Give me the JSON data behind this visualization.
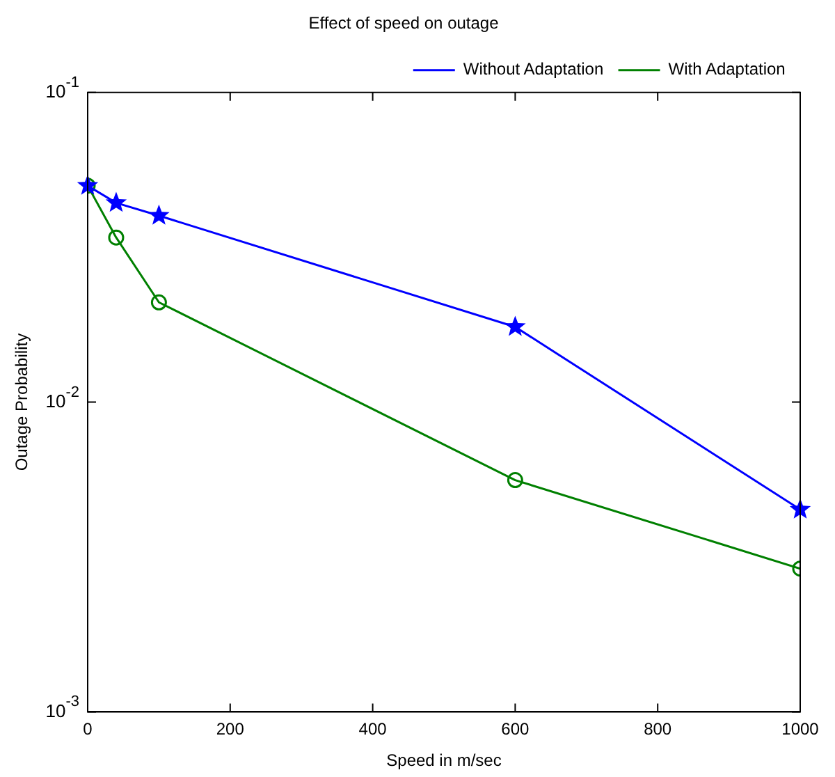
{
  "chart_data": {
    "type": "line",
    "title": "Effect of speed on outage",
    "xlabel": "Speed in m/sec",
    "ylabel": "Outage Probability",
    "x": [
      0,
      40,
      100,
      600,
      1000
    ],
    "series": [
      {
        "name": "Without Adaptation",
        "color": "#0000ff",
        "marker": "star",
        "values": [
          0.05,
          0.044,
          0.04,
          0.0175,
          0.0045
        ]
      },
      {
        "name": "With Adaptation",
        "color": "#008000",
        "marker": "circle",
        "values": [
          0.05,
          0.034,
          0.021,
          0.0056,
          0.0029
        ]
      }
    ],
    "xlim": [
      0,
      1000
    ],
    "xticks": [
      0,
      200,
      400,
      600,
      800,
      1000
    ],
    "ylim": [
      0.001,
      0.1
    ],
    "yticks": [
      {
        "value": 0.001,
        "label": "10$^{-3}$"
      },
      {
        "value": 0.01,
        "label": "10$^{-2}$"
      },
      {
        "value": 0.1,
        "label": "10$^{-1}$"
      }
    ],
    "log": "y",
    "grid": false,
    "legend": "top right",
    "line_style": "solid"
  }
}
